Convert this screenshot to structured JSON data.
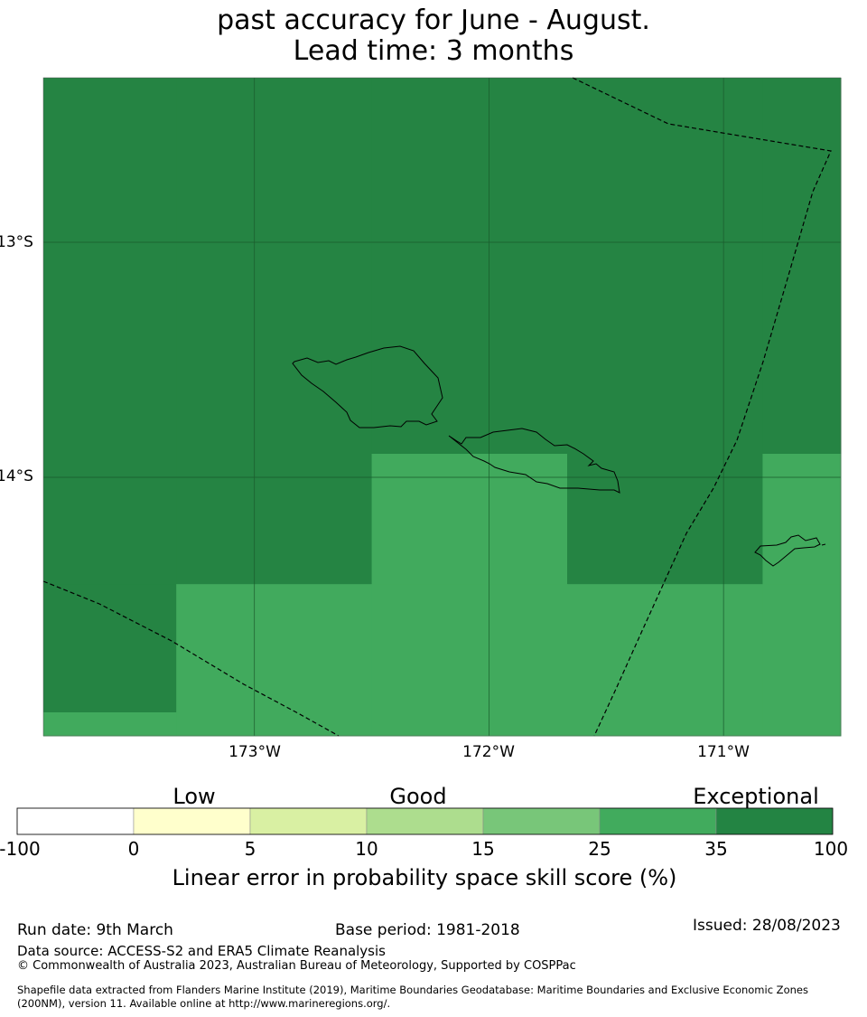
{
  "title": {
    "line1": "past accuracy for June - August.",
    "line2": "Lead time: 3 months"
  },
  "map": {
    "lat_labels": [
      "13°S",
      "14°S"
    ],
    "lon_labels": [
      "173°W",
      "172°W",
      "171°W"
    ],
    "extent": {
      "lon_min": -173.9,
      "lon_max": -170.5,
      "lat_min": -15.1,
      "lat_max": -12.3
    },
    "grid": {
      "lon_edges": [
        -173.9,
        -173.3333,
        -172.5,
        -171.6667,
        -170.8333,
        -170.5
      ],
      "lat_rows": [
        {
          "lat_top": -12.3,
          "lat_bottom": -13.9,
          "skill": [
            35,
            35,
            35,
            35,
            35
          ]
        },
        {
          "lat_top": -13.9,
          "lat_bottom": -14.4545,
          "skill": [
            35,
            35,
            25,
            35,
            25
          ]
        },
        {
          "lat_top": -14.4545,
          "lat_bottom": -15.0,
          "skill": [
            35,
            25,
            25,
            25,
            25
          ]
        },
        {
          "lat_top": -15.0,
          "lat_bottom": -15.1,
          "skill": [
            25,
            25,
            25,
            25,
            25
          ]
        }
      ]
    },
    "colors": {
      "skill_35_100": "#258443",
      "skill_25_35": "#41aa5d",
      "gridline": "#1a5a2c"
    }
  },
  "colorbar": {
    "categories": [
      "Low",
      "Good",
      "Exceptional"
    ],
    "ticks": [
      "-100",
      "0",
      "5",
      "10",
      "15",
      "25",
      "35",
      "100"
    ],
    "colors": [
      "#ffffff",
      "#ffffcc",
      "#d9f0a3",
      "#addd8e",
      "#78c679",
      "#41ab5d",
      "#238443"
    ],
    "title": "Linear error in probability space skill score (%)"
  },
  "footer": {
    "run_date": "Run date: 9th March",
    "base_period": "Base period: 1981-2018",
    "issued": "Issued: 28/08/2023",
    "data_source": "Data source: ACCESS-S2 and ERA5 Climate Reanalysis",
    "copyright": "© Commonwealth of Australia 2023, Australian Bureau of Meteorology, Supported by COSPPac",
    "shapefile_line1": "Shapefile data extracted from Flanders Marine Institute (2019), Maritime Boundaries Geodatabase: Maritime Boundaries and Exclusive Economic Zones",
    "shapefile_line2": "(200NM), version 11. Available online at http://www.marineregions.org/."
  }
}
